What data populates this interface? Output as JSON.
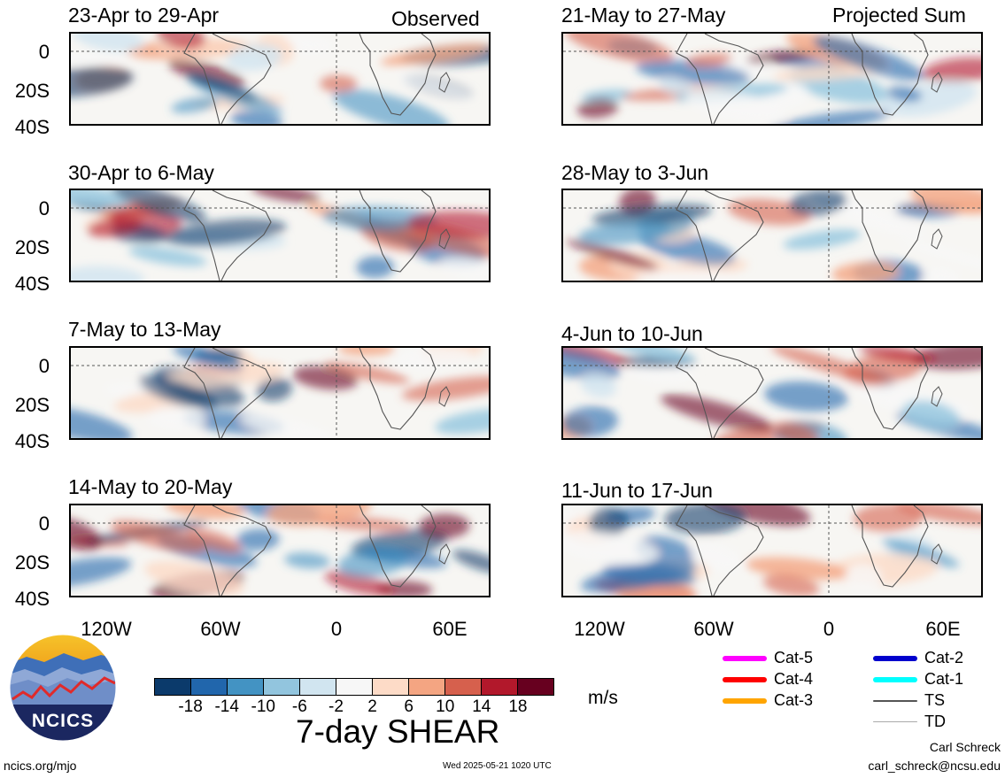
{
  "left_header": "Observed",
  "right_header": "Projected Sum",
  "panels_left": [
    {
      "title": "23-Apr to 29-Apr"
    },
    {
      "title": "30-Apr to 6-May"
    },
    {
      "title": "7-May to 13-May"
    },
    {
      "title": "14-May to 20-May"
    }
  ],
  "panels_right": [
    {
      "title": "21-May to 27-May"
    },
    {
      "title": "28-May to 3-Jun"
    },
    {
      "title": "4-Jun to 10-Jun"
    },
    {
      "title": "11-Jun to 17-Jun"
    }
  ],
  "y_ticks": [
    "0",
    "20S",
    "40S"
  ],
  "x_ticks": [
    "120W",
    "60W",
    "0",
    "60E"
  ],
  "colorbar": {
    "title": "7-day SHEAR",
    "units": "m/s",
    "ticks": [
      "-18",
      "-14",
      "-10",
      "-6",
      "-2",
      "2",
      "6",
      "10",
      "14",
      "18"
    ],
    "colors": [
      "#0b3a6b",
      "#2166ac",
      "#4393c3",
      "#92c5de",
      "#d1e5f0",
      "#f7f7f7",
      "#fddbc7",
      "#f4a582",
      "#d6604d",
      "#b2182b",
      "#67001f"
    ]
  },
  "legend": [
    {
      "label": "Cat-5",
      "color": "#ff00ff"
    },
    {
      "label": "Cat-4",
      "color": "#ff0000"
    },
    {
      "label": "Cat-3",
      "color": "#ffa500"
    },
    {
      "label": "Cat-2",
      "color": "#0000cd"
    },
    {
      "label": "Cat-1",
      "color": "#00ffff"
    },
    {
      "label": "TS",
      "color": "#555555"
    },
    {
      "label": "TD",
      "color": "#aaaaaa"
    }
  ],
  "logo_text": "NCICS",
  "footer_left": "ncics.org/mjo",
  "footer_center": "Wed 2025-05-21 1020 UTC",
  "author": "Carl Schreck",
  "email": "carl_schreck@ncsu.edu"
}
